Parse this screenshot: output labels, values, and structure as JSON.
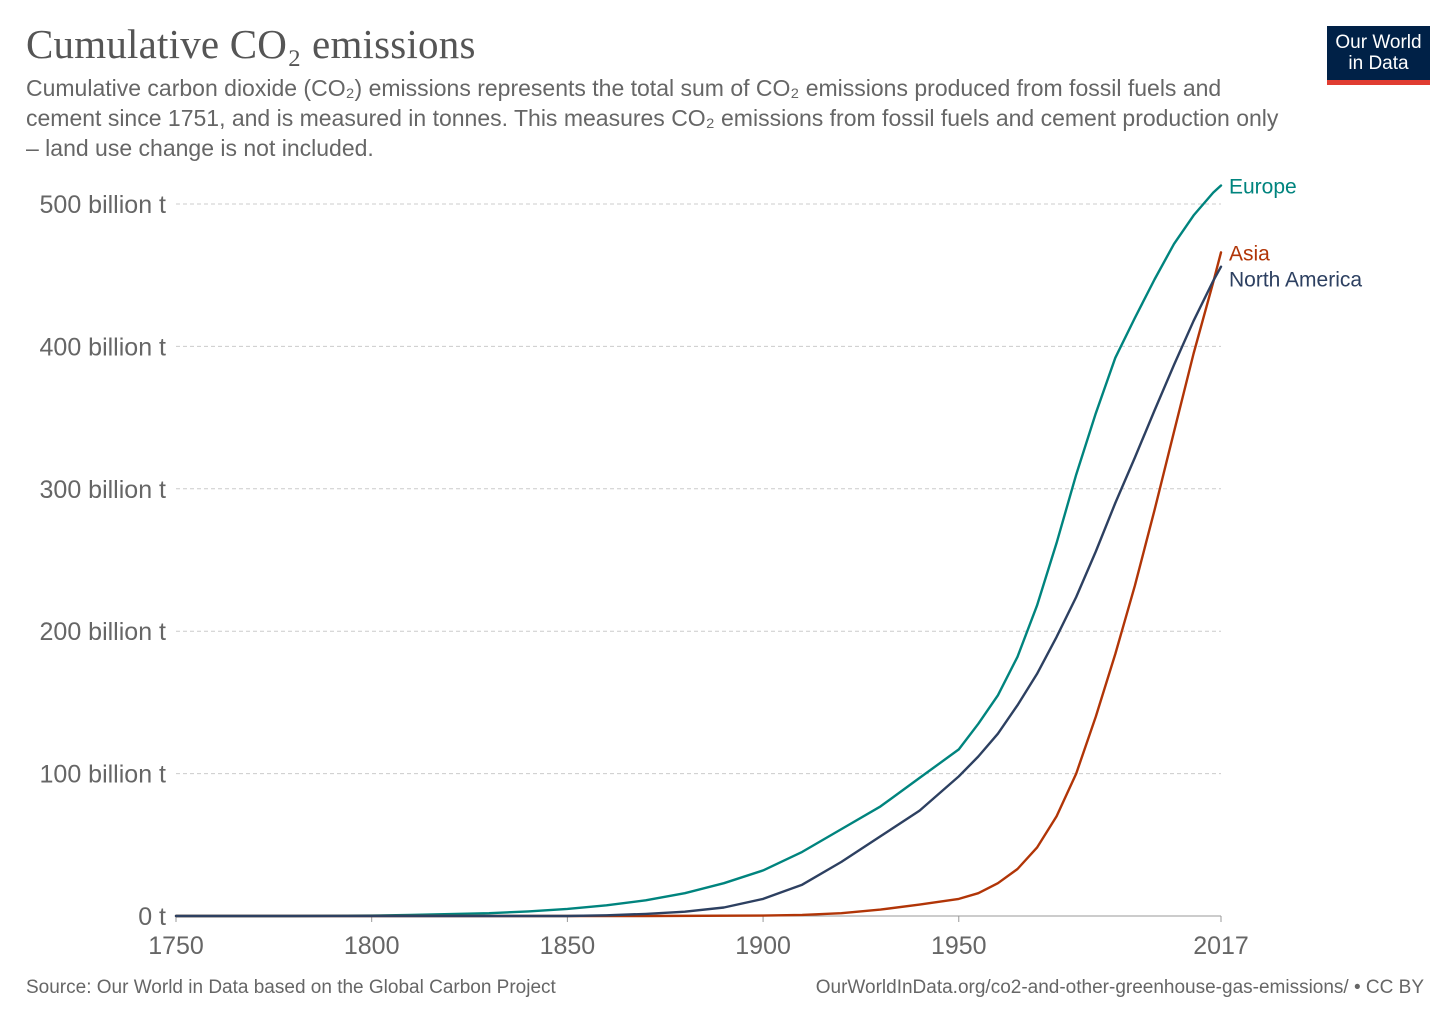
{
  "header": {
    "title": "Cumulative CO₂ emissions",
    "subtitle": "Cumulative carbon dioxide (CO₂) emissions represents the total sum of CO₂ emissions produced from fossil fuels and cement since 1751, and is measured in tonnes. This measures CO₂ emissions from fossil fuels and cement production only – land use change is not included."
  },
  "logo": {
    "line1": "Our World",
    "line2": "in Data",
    "bg": "#002147",
    "accent": "#e03c31"
  },
  "footer": {
    "source": "Source: Our World in Data based on the Global Carbon Project",
    "url": "OurWorldInData.org/co2-and-other-greenhouse-gas-emissions/ • CC BY"
  },
  "chart_data": {
    "type": "line",
    "xlim": [
      1750,
      2017
    ],
    "ylim": [
      0,
      500
    ],
    "unit": "billion t",
    "grid": true,
    "x_ticks": [
      1750,
      1800,
      1850,
      1900,
      1950,
      2017
    ],
    "x_tick_labels": [
      "1750",
      "1800",
      "1850",
      "1900",
      "1950",
      "2017"
    ],
    "y_ticks": [
      0,
      100,
      200,
      300,
      400,
      500
    ],
    "y_tick_labels": [
      "0 t",
      "100 billion t",
      "200 billion t",
      "300 billion t",
      "400 billion t",
      "500 billion t"
    ],
    "series": [
      {
        "name": "Europe",
        "color": "#00847e",
        "x": [
          1750,
          1780,
          1800,
          1810,
          1820,
          1830,
          1840,
          1850,
          1860,
          1870,
          1880,
          1890,
          1900,
          1910,
          1920,
          1930,
          1940,
          1950,
          1955,
          1960,
          1965,
          1970,
          1975,
          1980,
          1985,
          1990,
          1995,
          2000,
          2005,
          2010,
          2015,
          2017
        ],
        "y": [
          0,
          0,
          0.3,
          0.8,
          1.3,
          2,
          3.2,
          5,
          7.5,
          11,
          16,
          23,
          32,
          45,
          61,
          77,
          97,
          117,
          135,
          155,
          182,
          218,
          262,
          310,
          353,
          392,
          420,
          447,
          472,
          492,
          508,
          513
        ]
      },
      {
        "name": "Asia",
        "color": "#b13507",
        "x": [
          1750,
          1800,
          1850,
          1870,
          1900,
          1910,
          1920,
          1930,
          1940,
          1950,
          1955,
          1960,
          1965,
          1970,
          1975,
          1980,
          1985,
          1990,
          1995,
          2000,
          2005,
          2010,
          2015,
          2017
        ],
        "y": [
          0,
          0,
          0,
          0,
          0.3,
          0.8,
          2,
          4.5,
          8,
          12,
          16,
          23,
          33,
          48,
          70,
          100,
          140,
          184,
          232,
          285,
          340,
          395,
          445,
          466
        ]
      },
      {
        "name": "North America",
        "color": "#2d4061",
        "x": [
          1750,
          1800,
          1850,
          1860,
          1870,
          1880,
          1890,
          1900,
          1910,
          1920,
          1930,
          1940,
          1950,
          1955,
          1960,
          1965,
          1970,
          1975,
          1980,
          1985,
          1990,
          1995,
          2000,
          2005,
          2010,
          2015,
          2017
        ],
        "y": [
          0,
          0,
          0,
          0.5,
          1.5,
          3,
          6,
          12,
          22,
          38,
          56,
          74,
          98,
          112,
          128,
          148,
          170,
          196,
          224,
          256,
          290,
          322,
          355,
          387,
          418,
          446,
          456
        ]
      }
    ]
  }
}
